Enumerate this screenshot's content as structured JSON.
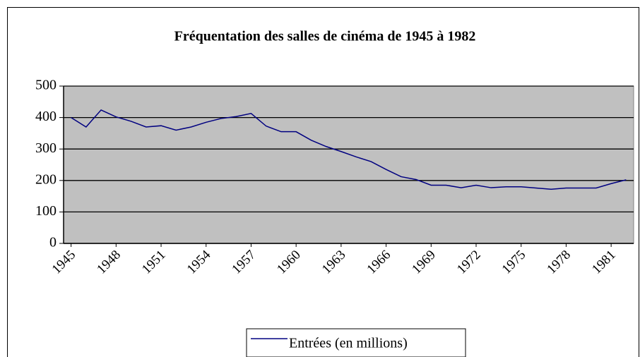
{
  "chart_data": {
    "type": "line",
    "title": "Fréquentation des salles de cinéma de 1945 à 1982",
    "x": [
      1945,
      1946,
      1947,
      1948,
      1949,
      1950,
      1951,
      1952,
      1953,
      1954,
      1955,
      1956,
      1957,
      1958,
      1959,
      1960,
      1961,
      1962,
      1963,
      1964,
      1965,
      1966,
      1967,
      1968,
      1969,
      1970,
      1971,
      1972,
      1973,
      1974,
      1975,
      1976,
      1977,
      1978,
      1979,
      1980,
      1981,
      1982
    ],
    "series": [
      {
        "name": "Entrées (en millions)",
        "color": "#000080",
        "values": [
          400,
          370,
          424,
          402,
          388,
          370,
          374,
          360,
          370,
          385,
          397,
          403,
          413,
          373,
          355,
          355,
          328,
          308,
          292,
          275,
          260,
          235,
          212,
          203,
          185,
          185,
          177,
          185,
          177,
          180,
          180,
          176,
          172,
          176,
          176,
          176,
          190,
          202
        ]
      }
    ],
    "xlim": [
      1944.5,
      1982.5
    ],
    "xticks": [
      1945,
      1948,
      1951,
      1954,
      1957,
      1960,
      1963,
      1966,
      1969,
      1972,
      1975,
      1978,
      1981
    ],
    "ylim": [
      0,
      500
    ],
    "yticks": [
      0,
      100,
      200,
      300,
      400,
      500
    ],
    "grid": true,
    "legend": "bottom"
  }
}
